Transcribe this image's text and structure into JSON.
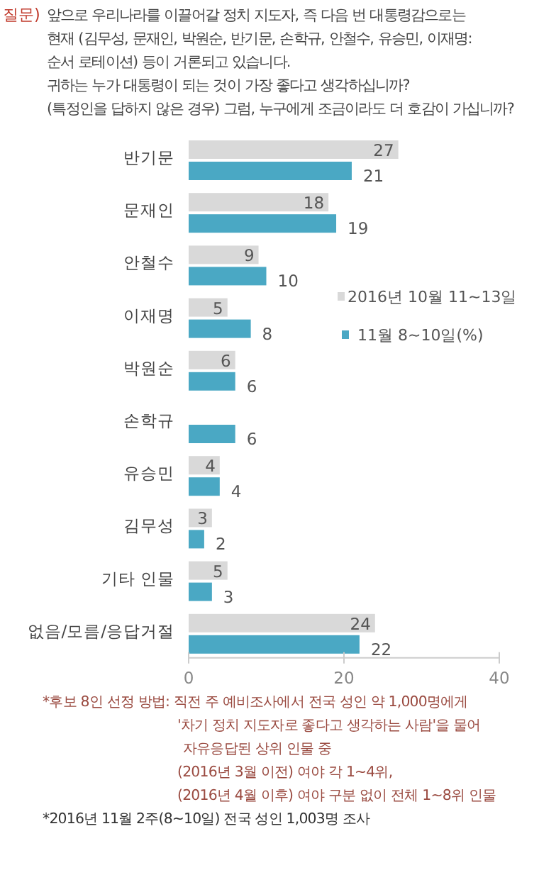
{
  "chart_data": {
    "type": "bar",
    "orientation": "horizontal",
    "title": "앞으로 우리나라를 이끌어갈 정치 지도자, 즉 다음 번 대통령감으로는\n현재 (김무성, 문재인, 박원순, 반기문, 손학규, 안철수, 유승민, 이재명:\n순서 로테이션) 등이 거론되고 있습니다.\n귀하는 누가 대통령이 되는 것이 가장 좋다고 생각하십니까?\n(특정인을 답하지 않은 경우) 그럼, 누구에게 조금이라도 더 호감이 가십니까?",
    "annotations": [
      "질문)",
      "*후보 8인 선정 방법: 직전 주 예비조사에서 전국 성인 약 1,000명에게\n'차기 정치 지도자로 좋다고 생각하는 사람'을 물어\n자유응답된 상위 인물 중\n(2016년 3월 이전) 여야 각 1~4위,\n(2016년 4월 이후) 여야 구분 없이 전체 1~8위 인물",
      "*2016년 11월 2주(8~10일) 전국 성인 1,003명 조사"
    ],
    "categories": [
      "반기문",
      "문재인",
      "안철수",
      "이재명",
      "박원순",
      "손학규",
      "유승민",
      "김무성",
      "기타 인물",
      "없음/모름/응답거절"
    ],
    "series": [
      {
        "name": "2016년 10월 11~13일",
        "color": "#d9d9d9",
        "values": [
          27,
          18,
          9,
          5,
          6,
          null,
          4,
          3,
          5,
          24
        ]
      },
      {
        "name": "11월 8~10일(%)",
        "color": "#4aa8c4",
        "values": [
          21,
          19,
          10,
          8,
          6,
          6,
          4,
          2,
          3,
          22
        ]
      }
    ],
    "xlim": [
      0,
      40
    ],
    "xticks": [
      0,
      20,
      40
    ],
    "data_labels": true,
    "legend": "right"
  }
}
